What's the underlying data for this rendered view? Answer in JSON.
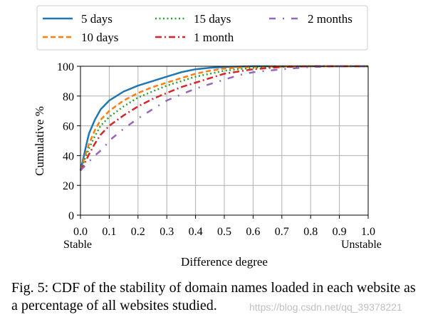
{
  "chart_data": {
    "type": "line",
    "xlabel": "Difference degree",
    "ylabel": "Cumulative %",
    "xlim": [
      0,
      1
    ],
    "ylim": [
      0,
      100
    ],
    "x_ticks": [
      "0.0",
      "0.1",
      "0.2",
      "0.3",
      "0.4",
      "0.5",
      "0.6",
      "0.7",
      "0.8",
      "0.9",
      "1.0"
    ],
    "y_ticks": [
      "0",
      "20",
      "40",
      "60",
      "80",
      "100"
    ],
    "x_end_labels": {
      "left": "Stable",
      "right": "Unstable"
    },
    "grid": true,
    "legend": {
      "placement": "top, outside plot, 3 columns"
    },
    "series": [
      {
        "name": "5 days",
        "color": "#1f77b4",
        "dash": "solid",
        "x": [
          0,
          0.01,
          0.02,
          0.03,
          0.05,
          0.07,
          0.1,
          0.15,
          0.2,
          0.25,
          0.3,
          0.35,
          0.4,
          0.45,
          0.5,
          0.6,
          0.7,
          0.8,
          0.9,
          1.0
        ],
        "y": [
          30,
          38,
          47,
          55,
          64,
          71,
          77,
          83,
          87,
          90,
          93,
          96,
          98,
          99,
          99.5,
          100,
          100,
          100,
          100,
          100
        ]
      },
      {
        "name": "10 days",
        "color": "#ff7f0e",
        "dash": "dashed",
        "x": [
          0,
          0.01,
          0.02,
          0.03,
          0.05,
          0.07,
          0.1,
          0.15,
          0.2,
          0.25,
          0.3,
          0.35,
          0.4,
          0.45,
          0.5,
          0.6,
          0.7,
          0.8,
          0.9,
          1.0
        ],
        "y": [
          30,
          36,
          42,
          48,
          57,
          64,
          70,
          77,
          82,
          86,
          89,
          92,
          95,
          97,
          98.5,
          99.5,
          100,
          100,
          100,
          100
        ]
      },
      {
        "name": "15 days",
        "color": "#2ca02c",
        "dash": "dotted",
        "x": [
          0,
          0.01,
          0.02,
          0.03,
          0.05,
          0.07,
          0.1,
          0.15,
          0.2,
          0.25,
          0.3,
          0.35,
          0.4,
          0.45,
          0.5,
          0.6,
          0.7,
          0.8,
          0.9,
          1.0
        ],
        "y": [
          30,
          35,
          40,
          45,
          53,
          60,
          66,
          73,
          79,
          83,
          87,
          90,
          93,
          95,
          97,
          99,
          99.7,
          100,
          100,
          100
        ]
      },
      {
        "name": "1 month",
        "color": "#d62728",
        "dash": "dashdot",
        "x": [
          0,
          0.01,
          0.02,
          0.03,
          0.05,
          0.07,
          0.1,
          0.15,
          0.2,
          0.25,
          0.3,
          0.35,
          0.4,
          0.45,
          0.5,
          0.6,
          0.7,
          0.8,
          0.9,
          1.0
        ],
        "y": [
          30,
          33,
          37,
          41,
          48,
          54,
          60,
          67,
          73,
          78,
          82,
          86,
          89,
          92,
          95,
          98,
          99.5,
          100,
          100,
          100
        ]
      },
      {
        "name": "2 months",
        "color": "#9467bd",
        "dash": "loosedashdot",
        "x": [
          0,
          0.02,
          0.05,
          0.08,
          0.1,
          0.15,
          0.2,
          0.25,
          0.3,
          0.35,
          0.4,
          0.45,
          0.5,
          0.55,
          0.6,
          0.7,
          0.8,
          0.9,
          1.0
        ],
        "y": [
          30,
          34,
          40,
          45,
          50,
          58,
          65,
          71,
          77,
          81,
          85,
          88,
          91,
          94,
          96,
          98,
          99.5,
          100,
          100
        ]
      }
    ]
  },
  "caption": "Fig. 5: CDF of the stability of domain names loaded in each website as a percentage of all websites studied.",
  "watermark": "https://blog.csdn.net/qq_39378221"
}
